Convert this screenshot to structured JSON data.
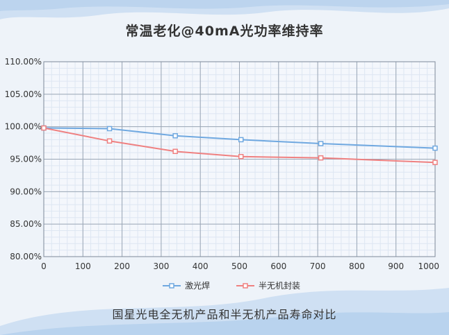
{
  "page": {
    "title": "常温老化@40mA光功率维持率",
    "caption": "国星光电全无机产品和半无机产品寿命对比"
  },
  "chart_data": {
    "type": "line",
    "title": "常温老化@40mA光功率维持率",
    "xlabel": "",
    "ylabel": "",
    "xlim": [
      0,
      1000
    ],
    "ylim": [
      80,
      110
    ],
    "x_ticks": [
      0,
      100,
      200,
      300,
      400,
      500,
      600,
      700,
      800,
      900,
      1000
    ],
    "y_ticks": [
      80,
      85,
      90,
      95,
      100,
      105,
      110
    ],
    "y_tick_labels": [
      "80.00%",
      "85.00%",
      "90.00%",
      "95.00%",
      "100.00%",
      "105.00%",
      "110.00%"
    ],
    "grid": true,
    "legend_position": "bottom",
    "series": [
      {
        "name": "激光焊",
        "color": "#6fa8e0",
        "x": [
          0,
          168,
          336,
          504,
          708,
          1000
        ],
        "y": [
          99.8,
          99.7,
          98.6,
          98.0,
          97.4,
          96.7
        ]
      },
      {
        "name": "半无机封装",
        "color": "#ef8080",
        "x": [
          0,
          168,
          336,
          504,
          708,
          1000
        ],
        "y": [
          99.8,
          97.8,
          96.2,
          95.4,
          95.2,
          94.5
        ]
      }
    ]
  }
}
